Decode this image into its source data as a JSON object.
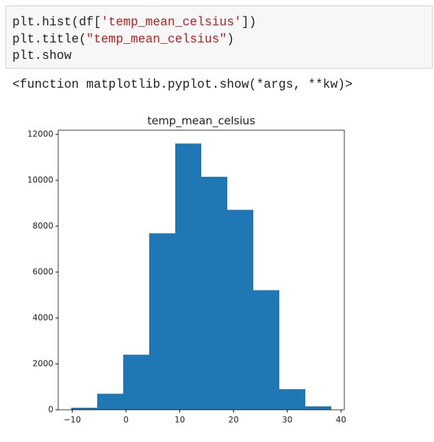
{
  "code": {
    "lines": [
      [
        "plt.hist(df[",
        "'temp_mean_celsius'",
        "])"
      ],
      [
        "plt.title(",
        "\"temp_mean_celsius\"",
        ")"
      ],
      [
        "plt.show"
      ]
    ]
  },
  "output": {
    "text": "<function matplotlib.pyplot.show(*args, **kw)>"
  },
  "chart_data": {
    "type": "histogram",
    "title": "temp_mean_celsius",
    "bins": [
      -10.2,
      -5.36,
      -0.52,
      4.32,
      9.16,
      14.0,
      18.84,
      23.68,
      28.52,
      33.36,
      38.2
    ],
    "values": [
      90,
      700,
      2400,
      7690,
      11600,
      10150,
      8710,
      5210,
      900,
      150
    ],
    "color": "#1f77b4",
    "xlim": [
      -12.62,
      40.62
    ],
    "xticks": [
      {
        "value": -10,
        "label": "−10"
      },
      0,
      10,
      20,
      30,
      40
    ],
    "ylim": [
      0,
      12180
    ],
    "yticks": [
      0,
      2000,
      4000,
      6000,
      8000,
      10000,
      12000
    ]
  }
}
